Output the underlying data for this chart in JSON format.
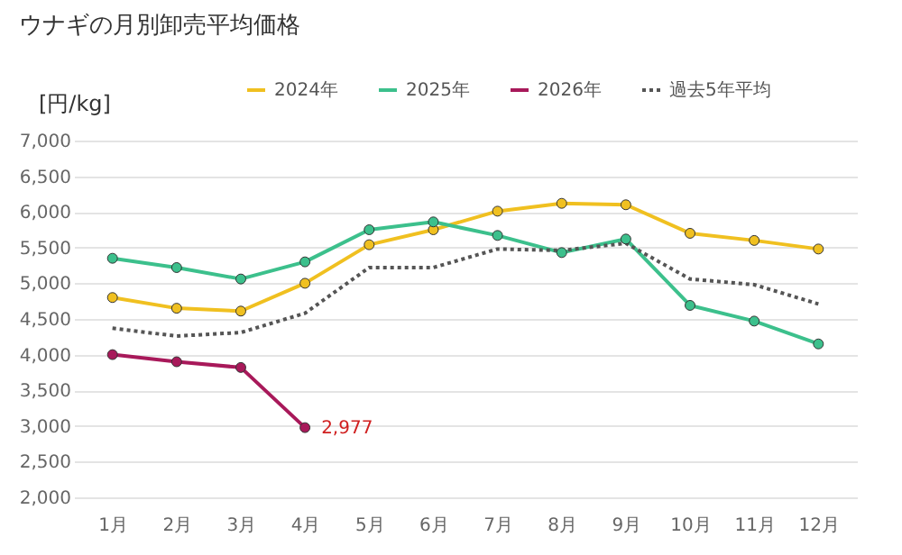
{
  "chart_data": {
    "type": "line",
    "title": "ウナギの月別卸売平均価格",
    "ylabel": "[円/kg]",
    "categories": [
      "1月",
      "2月",
      "3月",
      "4月",
      "5月",
      "6月",
      "7月",
      "8月",
      "9月",
      "10月",
      "11月",
      "12月"
    ],
    "series": [
      {
        "name": "2024年",
        "color": "#f0c020",
        "marker": "circle",
        "line_style": "solid",
        "values": [
          4800,
          4650,
          4610,
          5000,
          5540,
          5750,
          6010,
          6120,
          6100,
          5700,
          5600,
          5480
        ]
      },
      {
        "name": "2025年",
        "color": "#3cc08c",
        "marker": "circle",
        "line_style": "solid",
        "values": [
          5350,
          5220,
          5060,
          5300,
          5750,
          5860,
          5670,
          5430,
          5620,
          4690,
          4470,
          4150
        ]
      },
      {
        "name": "2026年",
        "color": "#a8195a",
        "marker": "circle",
        "line_style": "solid",
        "values": [
          4000,
          3900,
          3820,
          2977,
          null,
          null,
          null,
          null,
          null,
          null,
          null,
          null
        ]
      },
      {
        "name": "過去5年平均",
        "color": "#555555",
        "marker": "none",
        "line_style": "dotted",
        "values": [
          4370,
          4260,
          4310,
          4580,
          5220,
          5220,
          5480,
          5460,
          5560,
          5060,
          4980,
          4710
        ]
      }
    ],
    "ylim": [
      2000,
      7000
    ],
    "yticks": [
      {
        "value": 2000,
        "label": "2,000"
      },
      {
        "value": 2500,
        "label": "2,500"
      },
      {
        "value": 3000,
        "label": "3,000"
      },
      {
        "value": 3500,
        "label": "3,500"
      },
      {
        "value": 4000,
        "label": "4,000"
      },
      {
        "value": 4500,
        "label": "4,500"
      },
      {
        "value": 5000,
        "label": "5,000"
      },
      {
        "value": 5500,
        "label": "5,500"
      },
      {
        "value": 6000,
        "label": "6,000"
      },
      {
        "value": 6500,
        "label": "6,500"
      },
      {
        "value": 7000,
        "label": "7,000"
      }
    ],
    "annotations": [
      {
        "text": "2,977",
        "x": "4月",
        "y": 2977
      }
    ],
    "grid": "y",
    "legend": "top"
  }
}
